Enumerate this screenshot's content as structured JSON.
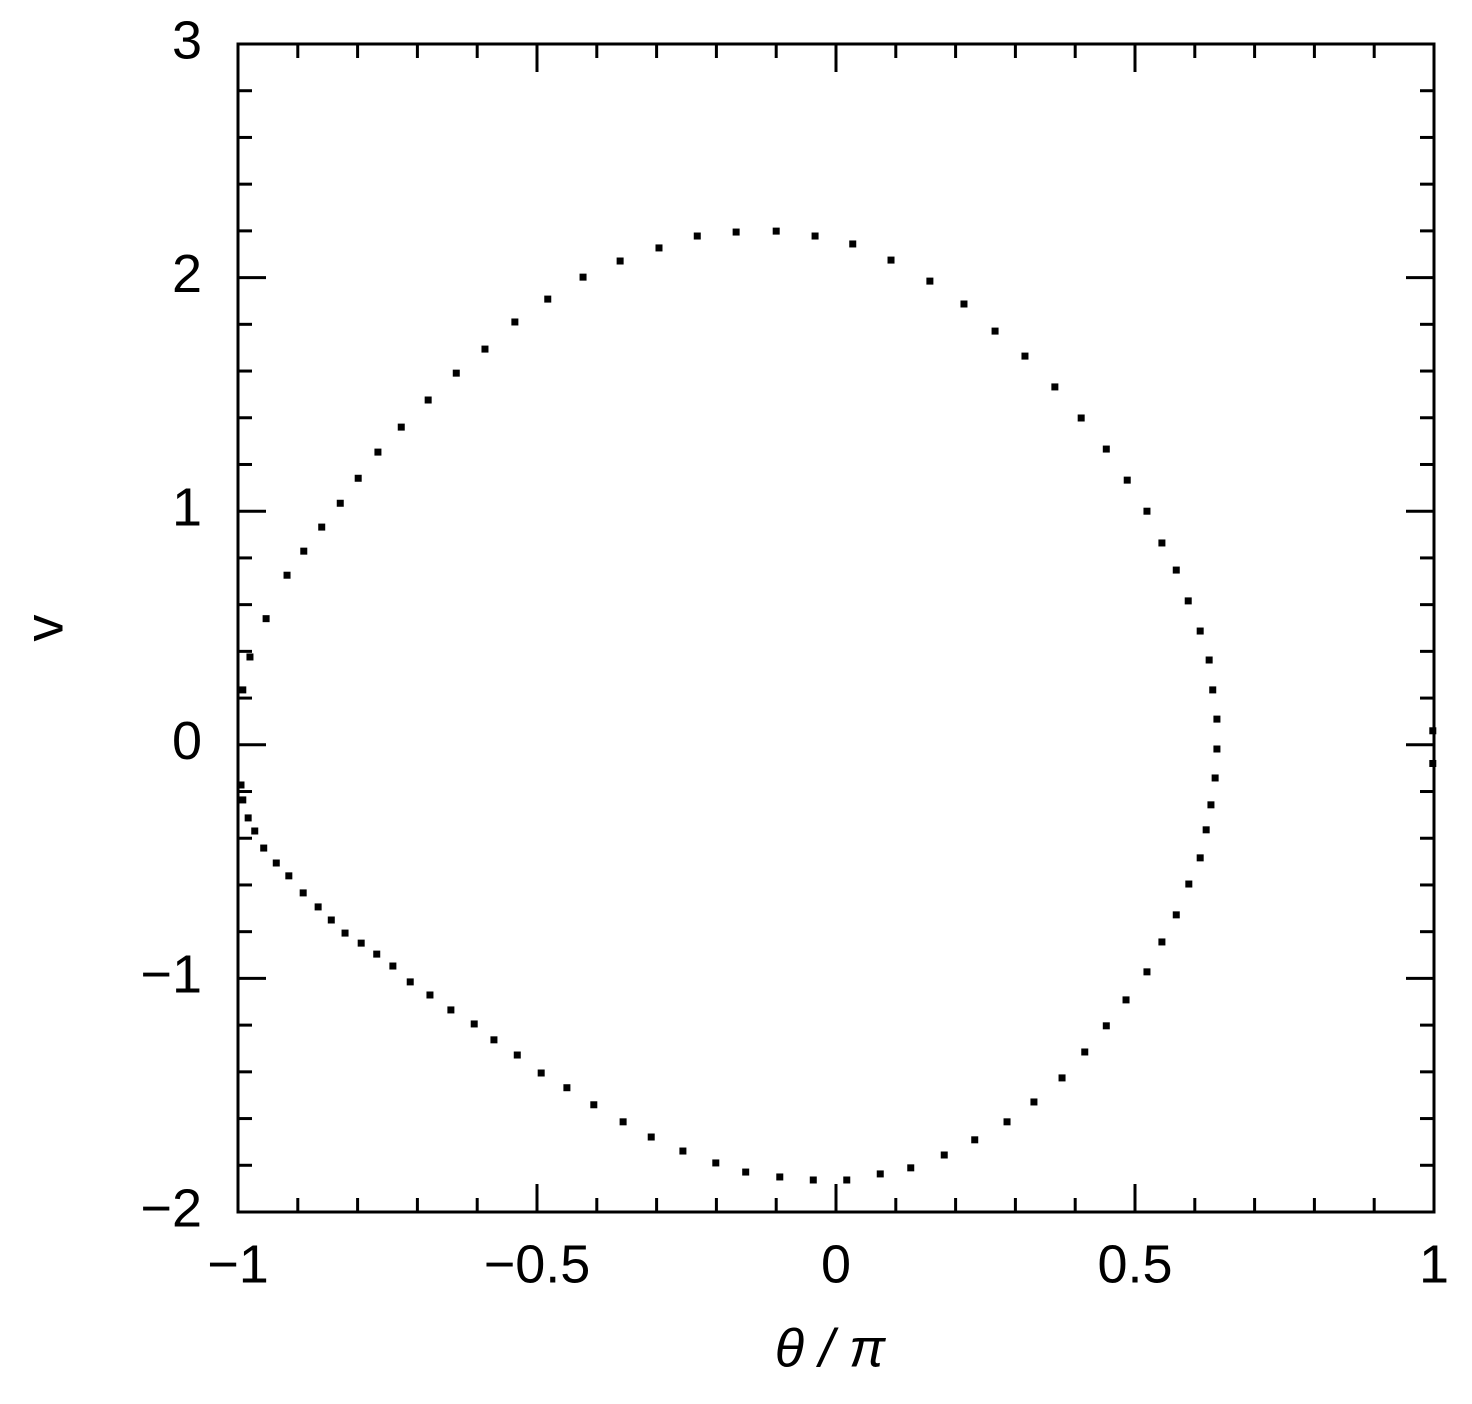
{
  "chart_data": {
    "type": "scatter",
    "xlabel": "θ / π",
    "ylabel": "v",
    "xlim": [
      -1,
      1
    ],
    "ylim": [
      -2,
      3
    ],
    "xticks": [
      {
        "value": -1,
        "label": "−1"
      },
      {
        "value": -0.5,
        "label": "−0.5"
      },
      0,
      0.5,
      1
    ],
    "yticks": [
      {
        "value": -2,
        "label": "−2"
      },
      {
        "value": -1,
        "label": "−1"
      },
      0,
      1,
      2,
      3
    ],
    "xminorticks": [
      -0.9,
      -0.8,
      -0.7,
      -0.6,
      -0.4,
      -0.3,
      -0.2,
      -0.1,
      0.1,
      0.2,
      0.3,
      0.4,
      0.6,
      0.7,
      0.8,
      0.9
    ],
    "yminorticks": [
      -1.8,
      -1.6,
      -1.4,
      -1.2,
      -0.8,
      -0.6,
      -0.4,
      -0.2,
      0.2,
      0.4,
      0.6,
      0.8,
      1.2,
      1.4,
      1.6,
      1.8,
      2.2,
      2.4,
      2.6,
      2.8
    ],
    "color": "#000000",
    "x": [
      -0.992,
      -0.98,
      -0.953,
      -0.918,
      -0.89,
      -0.86,
      -0.829,
      -0.799,
      -0.766,
      -0.727,
      -0.682,
      -0.635,
      -0.587,
      -0.537,
      -0.482,
      -0.423,
      -0.361,
      -0.296,
      -0.232,
      -0.167,
      -0.1,
      -0.035,
      0.028,
      0.092,
      0.157,
      0.214,
      0.266,
      0.316,
      0.366,
      0.41,
      0.452,
      0.487,
      0.52,
      0.545,
      0.569,
      0.589,
      0.609,
      0.624,
      0.63,
      0.637,
      0.637,
      0.634,
      0.627,
      0.619,
      0.609,
      0.59,
      0.569,
      0.545,
      0.52,
      0.485,
      0.452,
      0.416,
      0.378,
      0.331,
      0.286,
      0.232,
      0.181,
      0.125,
      0.074,
      0.018,
      -0.038,
      -0.094,
      -0.151,
      -0.201,
      -0.256,
      -0.309,
      -0.356,
      -0.405,
      -0.45,
      -0.493,
      -0.533,
      -0.572,
      -0.605,
      -0.644,
      -0.679,
      -0.712,
      -0.741,
      -0.768,
      -0.794,
      -0.821,
      -0.844,
      -0.866,
      -0.891,
      -0.915,
      -0.936,
      -0.957,
      -0.972,
      -0.983,
      -0.992,
      -0.995,
      0.998,
      0.998
    ],
    "values": [
      0.235,
      0.376,
      0.54,
      0.726,
      0.829,
      0.932,
      1.034,
      1.141,
      1.253,
      1.36,
      1.476,
      1.591,
      1.694,
      1.81,
      1.908,
      2.002,
      2.071,
      2.127,
      2.178,
      2.195,
      2.199,
      2.178,
      2.144,
      2.075,
      1.985,
      1.887,
      1.771,
      1.664,
      1.532,
      1.399,
      1.266,
      1.133,
      1.0,
      0.864,
      0.748,
      0.616,
      0.487,
      0.363,
      0.235,
      0.11,
      -0.018,
      -0.142,
      -0.257,
      -0.364,
      -0.484,
      -0.596,
      -0.728,
      -0.844,
      -0.972,
      -1.092,
      -1.203,
      -1.315,
      -1.426,
      -1.529,
      -1.614,
      -1.691,
      -1.756,
      -1.811,
      -1.837,
      -1.863,
      -1.863,
      -1.85,
      -1.829,
      -1.79,
      -1.739,
      -1.679,
      -1.614,
      -1.541,
      -1.468,
      -1.405,
      -1.328,
      -1.263,
      -1.195,
      -1.135,
      -1.071,
      -1.015,
      -0.947,
      -0.896,
      -0.849,
      -0.806,
      -0.75,
      -0.694,
      -0.634,
      -0.561,
      -0.506,
      -0.442,
      -0.369,
      -0.313,
      -0.236,
      -0.172,
      0.06,
      -0.08
    ]
  }
}
